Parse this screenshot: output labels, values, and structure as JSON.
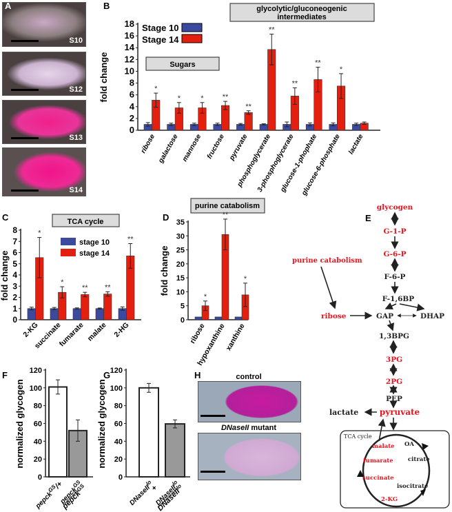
{
  "panels": {
    "A": "A",
    "B": "B",
    "C": "C",
    "D": "D",
    "E": "E",
    "F": "F",
    "G": "G",
    "H": "H"
  },
  "panel_a": {
    "stages": [
      "S10",
      "S12",
      "S13",
      "S14"
    ]
  },
  "panel_h": {
    "control": "control",
    "mutant_italic": "DNaseII",
    "mutant_rest": " mutant"
  },
  "colors": {
    "stage10": "#3b4a9e",
    "stage14": "#e3200f",
    "control_bar": "#ffffff",
    "mutant_bar": "#999999",
    "pathway_highlight": "#e8141e"
  },
  "chart_data": [
    {
      "id": "B",
      "type": "bar",
      "ylabel": "fold change",
      "ylim": [
        0,
        18
      ],
      "yticks": [
        0,
        2,
        4,
        6,
        8,
        10,
        12,
        14,
        16,
        18
      ],
      "boxes": [
        "glycolytic/gluconeogenic",
        "intermediates",
        "Sugars"
      ],
      "categories": [
        "ribose",
        "galactose",
        "mannose",
        "fructose",
        "pyruvate",
        "phosphoglycerate",
        "3-phosphoglycerate",
        "glucose-1-phophate",
        "glucose-6-phosphate",
        "lactate"
      ],
      "series": [
        {
          "name": "Stage 10",
          "values": [
            1,
            1,
            1,
            1,
            1,
            1,
            1,
            1,
            1,
            1
          ],
          "errors": [
            0.3,
            0.2,
            0.2,
            0.2,
            0.15,
            0.1,
            0.4,
            0.25,
            0.25,
            0.2
          ]
        },
        {
          "name": "Stage 14",
          "values": [
            5.1,
            3.8,
            3.8,
            4.2,
            3.0,
            13.7,
            5.8,
            8.6,
            7.5,
            1.2
          ],
          "errors": [
            1.2,
            0.9,
            0.9,
            0.7,
            0.3,
            2.6,
            1.4,
            2.1,
            2.1,
            0.2
          ]
        }
      ],
      "significance": [
        "*",
        "*",
        "*",
        "**",
        "**",
        "**",
        "**",
        "**",
        "*",
        ""
      ]
    },
    {
      "id": "C",
      "type": "bar",
      "ylabel": "fold change",
      "ylim": [
        0,
        8
      ],
      "yticks": [
        0,
        1,
        2,
        3,
        4,
        5,
        6,
        7,
        8
      ],
      "boxes": [
        "TCA cycle"
      ],
      "categories": [
        "2-KG",
        "succinate",
        "fumarate",
        "malate",
        "2-HG"
      ],
      "series": [
        {
          "name": "stage 10",
          "values": [
            1,
            1,
            1,
            1,
            1
          ],
          "errors": [
            0.12,
            0.1,
            0.06,
            0.05,
            0.15
          ]
        },
        {
          "name": "stage 14",
          "values": [
            5.55,
            2.45,
            2.25,
            2.3,
            5.7
          ],
          "errors": [
            1.8,
            0.5,
            0.2,
            0.2,
            1.1
          ]
        }
      ],
      "significance": [
        "*",
        "*",
        "**",
        "**",
        "**"
      ]
    },
    {
      "id": "D",
      "type": "bar",
      "ylabel": "fold change",
      "ylim": [
        0,
        35
      ],
      "yticks": [
        0,
        5,
        10,
        15,
        20,
        25,
        30,
        35
      ],
      "boxes": [
        "purine catabolism"
      ],
      "categories": [
        "ribose",
        "hypoxanthine",
        "xanthine"
      ],
      "series": [
        {
          "values": [
            1,
            1,
            1
          ],
          "errors": [
            0,
            0,
            0
          ]
        },
        {
          "values": [
            5.0,
            30.5,
            8.9
          ],
          "errors": [
            1.7,
            5.5,
            4.2
          ]
        }
      ],
      "significance": [
        "*",
        "**",
        "*"
      ]
    },
    {
      "id": "F",
      "type": "bar",
      "ylabel": "normalized glycogen",
      "ylim": [
        0,
        120
      ],
      "yticks": [
        0,
        20,
        40,
        60,
        80,
        100,
        120
      ],
      "categories": [
        "pepck GS/+",
        "pepck GS / pepck GS"
      ],
      "category_parts": [
        [
          "pepck",
          "GS",
          "/+"
        ],
        [
          "pepck",
          "GS",
          "pepck",
          "GS"
        ]
      ],
      "series": [
        {
          "values": [
            101,
            52
          ],
          "errors": [
            8,
            12
          ]
        }
      ]
    },
    {
      "id": "G",
      "type": "bar",
      "ylabel": "normalized glycogen",
      "ylim": [
        0,
        120
      ],
      "yticks": [
        0,
        20,
        40,
        60,
        80,
        100,
        120
      ],
      "categories": [
        "DNaseII lo / +",
        "DNaseII lo / DNaseII lo"
      ],
      "category_parts": [
        [
          "DNaseII",
          "lo",
          "+"
        ],
        [
          "DNaseII",
          "lo",
          "DNaseII",
          "lo"
        ]
      ],
      "series": [
        {
          "values": [
            100,
            59.5
          ],
          "errors": [
            5,
            4.5
          ]
        }
      ]
    }
  ],
  "pathway": {
    "nodes": {
      "glycogen": "glycogen",
      "g1p": "G-1-P",
      "g6p": "G-6-P",
      "f6p": "F-6-P",
      "f16bp": "F-1,6BP",
      "purine": "purine catabolism",
      "ribose": "ribose",
      "gap": "GAP",
      "dhap": "DHAP",
      "bpg": "1,3BPG",
      "pg3": "3PG",
      "pg2": "2PG",
      "pep": "PEP",
      "pyruvate": "pyruvate",
      "lactate": "lactate",
      "tca": "TCA cycle",
      "malate": "malate",
      "oa": "OA",
      "fumarate": "fumarate",
      "citrate": "citrate",
      "succinate": "succinate",
      "isocitrate": "isocitrate",
      "kg2": "2-KG"
    }
  }
}
